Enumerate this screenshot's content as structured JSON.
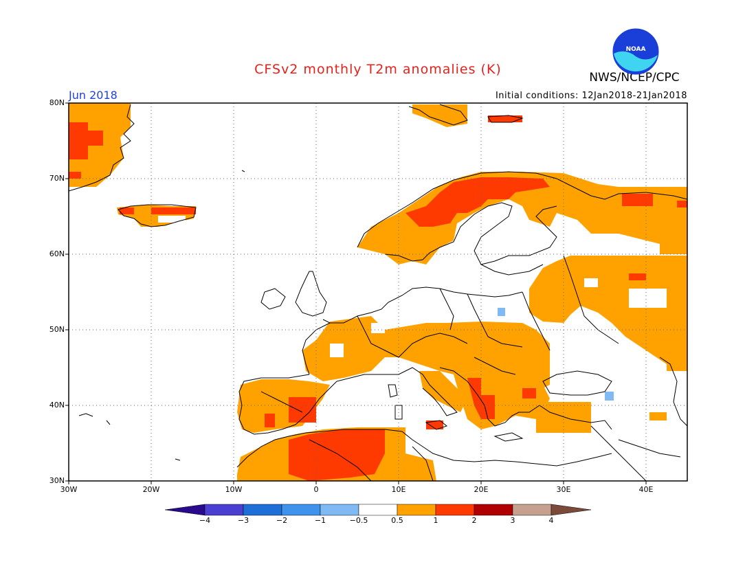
{
  "header": {
    "title": "CFSv2 monthly T2m anomalies (K)",
    "period": "Jun 2018",
    "initial_conditions": "Initial conditions: 12Jan2018-21Jan2018",
    "agency": "NWS/NCEP/CPC",
    "logo_text": "NOAA"
  },
  "map": {
    "projection": "lat-lon",
    "lon_range": [
      -30,
      45
    ],
    "lat_range": [
      30,
      80
    ],
    "grid": true,
    "lat_labels": [
      "80N",
      "70N",
      "60N",
      "50N",
      "40N",
      "30N"
    ],
    "lon_labels": [
      "30W",
      "20W",
      "10W",
      "0",
      "10E",
      "20E",
      "30E",
      "40E"
    ]
  },
  "colorbar": {
    "tick_labels": [
      "-4",
      "-3",
      "-2",
      "-1",
      "-0.5",
      "0.5",
      "1",
      "2",
      "3",
      "4"
    ],
    "colors": [
      "#2a0a8c",
      "#4a3fd0",
      "#1f6fd8",
      "#3f93ec",
      "#7fbaf4",
      "#ffffff",
      "#ffa200",
      "#ff3a00",
      "#b00000",
      "#c8a090",
      "#7a4a3a"
    ]
  }
}
